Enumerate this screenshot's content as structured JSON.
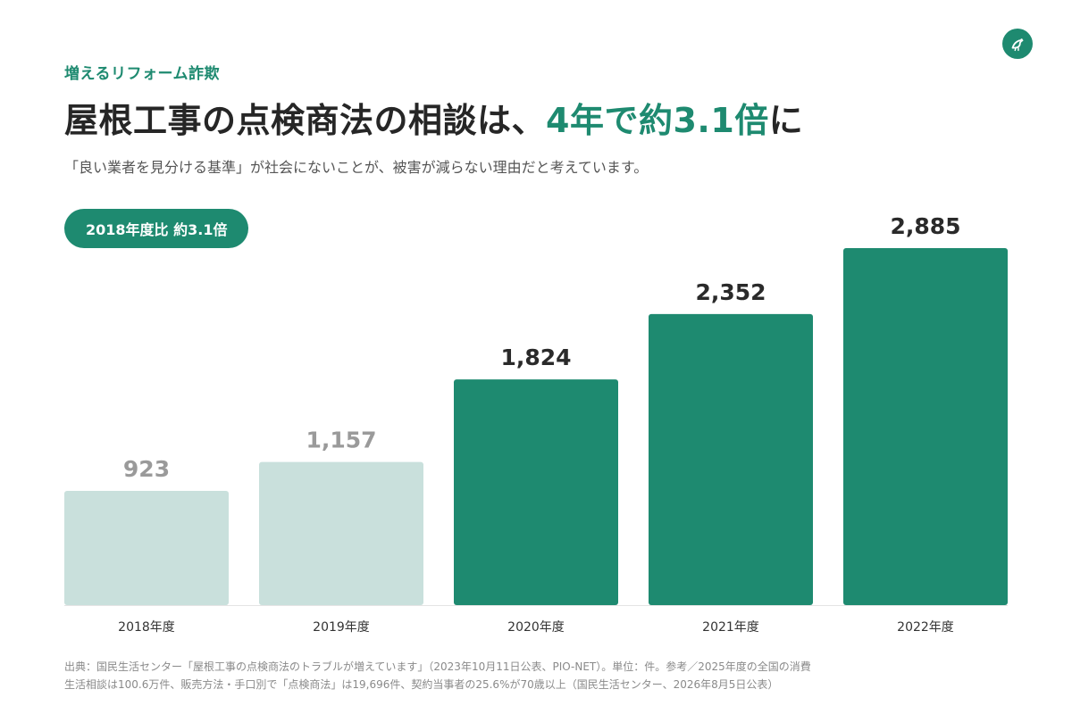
{
  "header": {
    "eyebrow": "増えるリフォーム詐欺",
    "headline_prefix": "屋根工事の点検商法の相談は、",
    "headline_highlight": "4年で約3.1倍",
    "headline_suffix": "に",
    "subtitle": "「良い業者を見分ける基準」が社会にないことが、被害が減らない理由だと考えています。"
  },
  "badge": {
    "label": "2018年度比 約3.1倍"
  },
  "logo": {
    "icon": "bird-icon"
  },
  "colors": {
    "accent": "#1e8a70",
    "bar_muted": "#c9e0dc",
    "label_muted": "#9a9a9a",
    "label_strong": "#2a2a2a"
  },
  "chart_data": {
    "type": "bar",
    "categories": [
      "2018年度",
      "2019年度",
      "2020年度",
      "2021年度",
      "2022年度"
    ],
    "values": [
      923,
      1157,
      1824,
      2352,
      2885
    ],
    "value_labels": [
      "923",
      "1,157",
      "1,824",
      "2,352",
      "2,885"
    ],
    "highlighted": [
      false,
      false,
      true,
      true,
      true
    ],
    "title": "",
    "xlabel": "",
    "ylabel": "",
    "ylim": [
      0,
      3000
    ],
    "grid": false,
    "legend": "none"
  },
  "footnote": {
    "line1": "出典：国民生活センター「屋根工事の点検商法のトラブルが増えています」（2023年10月11日公表、PIO-NET）。単位：件。参考／2025年度の全国の消費",
    "line2": "生活相談は100.6万件、販売方法・手口別で「点検商法」は19,696件、契約当事者の25.6%が70歳以上（国民生活センター、2026年8月5日公表）"
  }
}
